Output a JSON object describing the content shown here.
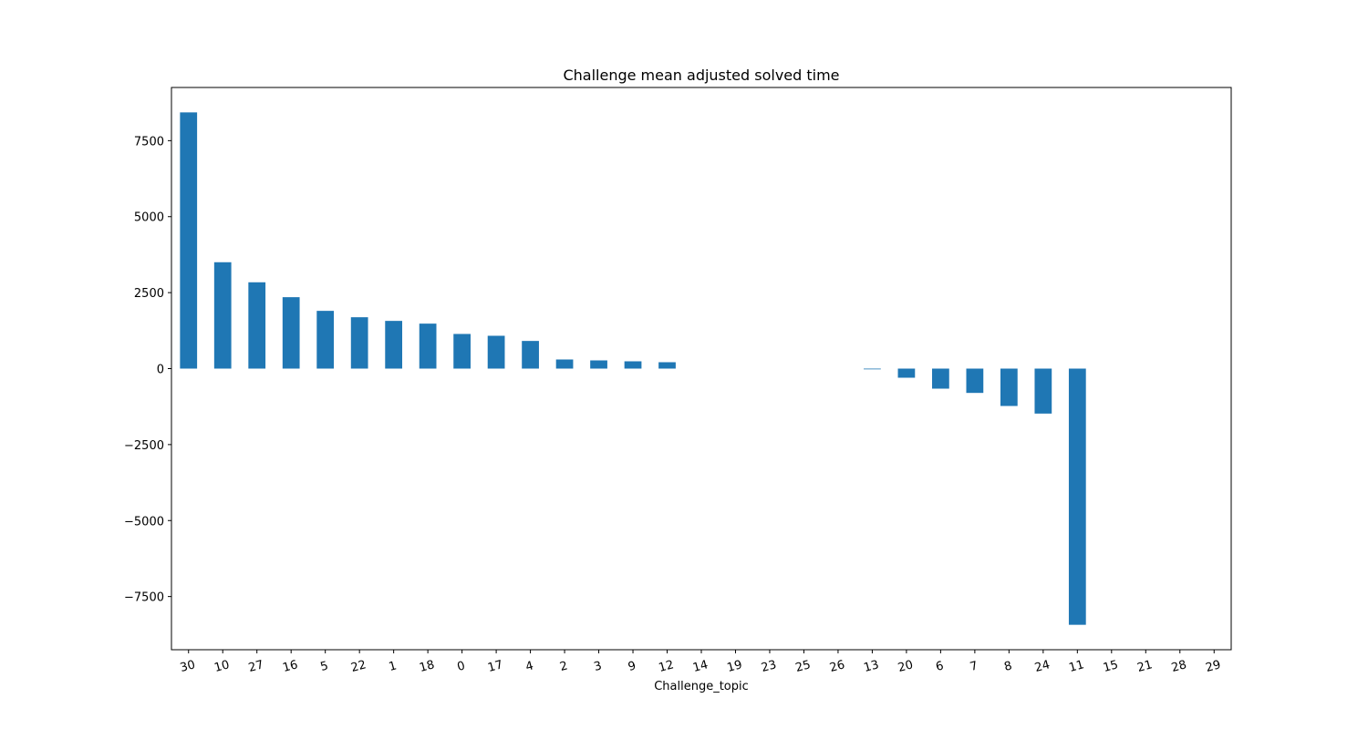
{
  "chart_data": {
    "type": "bar",
    "title": "Challenge mean adjusted solved time",
    "xlabel": "Challenge_topic",
    "ylabel": "",
    "categories": [
      "30",
      "10",
      "27",
      "16",
      "5",
      "22",
      "1",
      "18",
      "0",
      "17",
      "4",
      "2",
      "3",
      "9",
      "12",
      "14",
      "19",
      "23",
      "25",
      "26",
      "13",
      "20",
      "6",
      "7",
      "8",
      "24",
      "11",
      "15",
      "21",
      "28",
      "29"
    ],
    "values": [
      8430,
      3500,
      2840,
      2350,
      1900,
      1690,
      1570,
      1480,
      1140,
      1080,
      910,
      300,
      270,
      240,
      210,
      0,
      0,
      0,
      0,
      0,
      -20,
      -300,
      -660,
      -800,
      -1230,
      -1480,
      -8430,
      0,
      0,
      0,
      0
    ],
    "ylim": [
      -9250,
      9250
    ],
    "yticks": [
      -7500,
      -5000,
      -2500,
      0,
      2500,
      5000,
      7500
    ],
    "ytick_labels": [
      "−7500",
      "−5000",
      "−2500",
      "0",
      "2500",
      "5000",
      "7500"
    ],
    "bar_color": "#1f77b4",
    "grid": false,
    "legend": "none"
  }
}
